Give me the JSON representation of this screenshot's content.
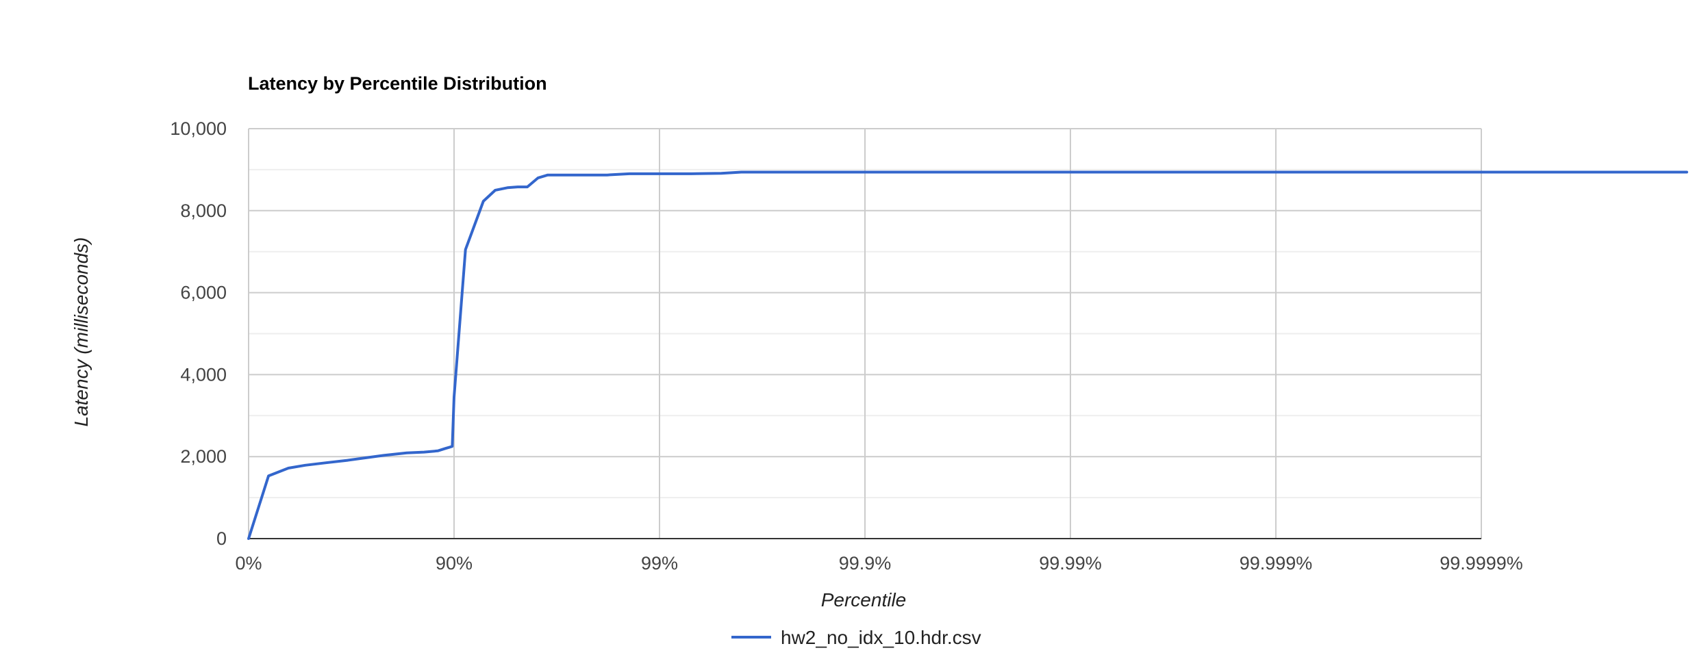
{
  "chart_data": {
    "type": "line",
    "title": "Latency by Percentile Distribution",
    "xlabel": "Percentile",
    "ylabel": "Latency (milliseconds)",
    "x_scale": "log of 1/(1 - percentile), one decade per tick",
    "x_ticks": [
      "0%",
      "90%",
      "99%",
      "99.9%",
      "99.99%",
      "99.999%",
      "99.9999%"
    ],
    "y_ticks": [
      "0",
      "2,000",
      "4,000",
      "6,000",
      "8,000",
      "10,000"
    ],
    "ylim": [
      0,
      10000
    ],
    "grid": true,
    "legend_position": "bottom",
    "color": "#3366cc",
    "series": [
      {
        "name": "hw2_no_idx_10.hdr.csv",
        "points": [
          {
            "x": "0%",
            "y": 0
          },
          {
            "x": "20%",
            "y": 1530
          },
          {
            "x": "36%",
            "y": 1720
          },
          {
            "x": "47%",
            "y": 1790
          },
          {
            "x": "58%",
            "y": 1850
          },
          {
            "x": "67%",
            "y": 1910
          },
          {
            "x": "72%",
            "y": 1960
          },
          {
            "x": "78%",
            "y": 2030
          },
          {
            "x": "83%",
            "y": 2090
          },
          {
            "x": "86%",
            "y": 2110
          },
          {
            "x": "88%",
            "y": 2140
          },
          {
            "x": "89%",
            "y": 2200
          },
          {
            "x": "89.5%",
            "y": 2230
          },
          {
            "x": "89.8%",
            "y": 2250
          },
          {
            "x": "90%",
            "y": 3450
          },
          {
            "x": "91.2%",
            "y": 7050
          },
          {
            "x": "92.8%",
            "y": 8230
          },
          {
            "x": "93.7%",
            "y": 8500
          },
          {
            "x": "94.5%",
            "y": 8560
          },
          {
            "x": "95.1%",
            "y": 8580
          },
          {
            "x": "95.6%",
            "y": 8580
          },
          {
            "x": "96.1%",
            "y": 8800
          },
          {
            "x": "96.5%",
            "y": 8870
          },
          {
            "x": "97.0%",
            "y": 8870
          },
          {
            "x": "97.5%",
            "y": 8870
          },
          {
            "x": "98.2%",
            "y": 8870
          },
          {
            "x": "98.6%",
            "y": 8900
          },
          {
            "x": "99%",
            "y": 8900
          },
          {
            "x": "99.3%",
            "y": 8900
          },
          {
            "x": "99.5%",
            "y": 8910
          },
          {
            "x": "99.6%",
            "y": 8940
          },
          {
            "x": "99.9999%",
            "y": 8940
          },
          {
            "x": "99.99999%",
            "y": 8940
          }
        ]
      }
    ]
  }
}
